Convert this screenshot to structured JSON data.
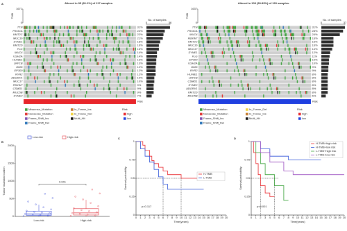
{
  "chart_data": [
    {
      "type": "oncoplot",
      "panel_label": "A",
      "title": "Altered in 95 (81.2%) of 117 samples.",
      "n_samples": 117,
      "tmb_label": "TMB",
      "tmb_lim": [
        0,
        1671
      ],
      "tmb_ticks": [
        1671,
        0
      ],
      "count_label": "No. of samples",
      "count_lim": [
        0,
        36
      ],
      "count_ticks": [
        0,
        36
      ],
      "genes": [
        "TTN",
        "PIK3CA",
        "KMT2C",
        "MUC16",
        "SYNE1",
        "KMT2D",
        "FLG",
        "MUC4",
        "USH2A",
        "HUWE1",
        "LRP1B",
        "DMD",
        "EP300",
        "RYR2",
        "ADGRV1",
        "MUC17",
        "FBXW7",
        "CSMD1",
        "MUC5B",
        "SYNE2"
      ],
      "percent_labels": [
        "31%",
        "24%",
        "22%",
        "21%",
        "18%",
        "16%",
        "16%",
        "14%",
        "14%",
        "13%",
        "13%",
        "12%",
        "12%",
        "12%",
        "10%",
        "10%",
        "9%",
        "9%",
        "9%",
        "7%"
      ],
      "sample_counts": [
        36,
        28,
        26,
        25,
        21,
        19,
        19,
        16,
        16,
        15,
        15,
        14,
        14,
        14,
        12,
        12,
        11,
        11,
        11,
        8
      ],
      "risk_label": "Risk",
      "risk_color": "#e8262b",
      "legend": {
        "classes": [
          {
            "name": "Missense_Mutation",
            "color": "#3aa23a"
          },
          {
            "name": "Nonsense_Mutation",
            "color": "#e0312f"
          },
          {
            "name": "Frame_Shift_Ins",
            "color": "#7a4fb0"
          },
          {
            "name": "Frame_Shift_Del",
            "color": "#2a74b8"
          },
          {
            "name": "In_Frame_Ins",
            "color": "#c47a2c"
          },
          {
            "name": "In_Frame_Del",
            "color": "#f0d23c"
          },
          {
            "name": "Multi_Hit",
            "color": "#111111"
          }
        ],
        "risk_title": "Risk",
        "risk_levels": [
          {
            "name": "high",
            "color": "#e8262b"
          },
          {
            "name": "low",
            "color": "#1f3fe0"
          }
        ]
      }
    },
    {
      "type": "oncoplot",
      "title": "Altered in 109 (90.83%) of 120 samples.",
      "n_samples": 120,
      "tmb_label": "TMB",
      "tmb_lim": [
        0,
        1637
      ],
      "tmb_ticks": [
        1637,
        0
      ],
      "count_label": "No. of samples",
      "count_lim": [
        0,
        37
      ],
      "count_ticks": [
        0,
        37
      ],
      "genes": [
        "TTN",
        "PIK3CA",
        "MUC4",
        "FBXW7",
        "KMT2C",
        "MUC16",
        "MUC17",
        "SYNE1",
        "FLG",
        "EP300",
        "USH2A",
        "DMD",
        "RYR2",
        "HUWE1",
        "LRP1B",
        "CSMD1",
        "SYNE2",
        "ADGRV1",
        "KMT2D",
        "MUC5B"
      ],
      "percent_labels": [
        "31%",
        "28%",
        "24%",
        "16%",
        "16%",
        "16%",
        "14%",
        "12%",
        "11%",
        "10%",
        "10%",
        "9%",
        "9%",
        "8%",
        "8%",
        "8%",
        "8%",
        "8%",
        "8%",
        "6%"
      ],
      "sample_counts": [
        37,
        34,
        29,
        19,
        19,
        19,
        17,
        14,
        13,
        12,
        12,
        11,
        11,
        10,
        10,
        10,
        10,
        10,
        10,
        7
      ],
      "risk_label": "Risk",
      "risk_color": "#1f3fe0",
      "legend": {
        "classes": [
          {
            "name": "Missense_Mutation",
            "color": "#3aa23a"
          },
          {
            "name": "Nonsense_Mutation",
            "color": "#e0312f"
          },
          {
            "name": "Frame_Shift_Ins",
            "color": "#7a4fb0"
          },
          {
            "name": "Frame_Shift_Del",
            "color": "#2a74b8"
          },
          {
            "name": "In_Frame_Del",
            "color": "#f0d23c"
          },
          {
            "name": "In_Frame_Ins",
            "color": "#c47a2c"
          },
          {
            "name": "Multi_Hit",
            "color": "#111111"
          }
        ],
        "risk_title": "Risk",
        "risk_levels": [
          {
            "name": "high",
            "color": "#e8262b"
          },
          {
            "name": "low",
            "color": "#1f3fe0"
          }
        ]
      }
    },
    {
      "type": "box",
      "panel_label": "B",
      "ylabel": "Tumor mutation burden",
      "categories": [
        "Low-risk",
        "High-risk"
      ],
      "colors": [
        "#2a3fd6",
        "#e0323c"
      ],
      "ylim": [
        0,
        2000
      ],
      "yticks": [
        0,
        500,
        1000,
        1500,
        2000
      ],
      "boxes": [
        {
          "min": 0,
          "q1": 30,
          "median": 70,
          "q3": 150,
          "max": 330
        },
        {
          "min": 0,
          "q1": 40,
          "median": 100,
          "q3": 220,
          "max": 470
        }
      ],
      "points": [
        [
          10,
          25,
          40,
          55,
          70,
          90,
          110,
          130,
          160,
          200,
          260,
          340,
          420,
          520,
          640
        ],
        [
          15,
          30,
          50,
          75,
          95,
          120,
          150,
          180,
          230,
          290,
          380,
          480,
          560,
          650,
          760
        ]
      ],
      "p_value": 0.041
    },
    {
      "type": "km",
      "panel_label": "C",
      "xlabel": "Time(years)",
      "ylabel": "Survival probability",
      "xlim": [
        0,
        20
      ],
      "xticks": [
        0,
        1,
        2,
        3,
        4,
        5,
        6,
        7,
        8,
        9,
        10,
        11,
        12,
        13,
        14,
        15,
        16,
        17,
        18,
        19,
        20
      ],
      "ylim": [
        0,
        1
      ],
      "yticks": [
        0,
        0.25,
        0.5,
        0.75,
        1
      ],
      "median_line": 0.5,
      "p_text": "p=0.117",
      "legend_corner": "right",
      "series": [
        {
          "name": "H-TMB",
          "color": "#e8262b",
          "x": [
            0,
            1.5,
            1.5,
            2,
            2,
            3,
            3,
            3.5,
            3.5,
            4,
            4,
            5,
            5,
            6,
            6,
            7,
            7,
            10,
            10,
            17
          ],
          "y": [
            1,
            1,
            0.95,
            0.95,
            0.88,
            0.88,
            0.8,
            0.8,
            0.74,
            0.74,
            0.7,
            0.7,
            0.65,
            0.65,
            0.6,
            0.6,
            0.55,
            0.55,
            0.5,
            0.5
          ]
        },
        {
          "name": "L-TMB",
          "color": "#2a4fd6",
          "x": [
            0,
            1,
            1,
            2,
            2,
            3,
            3,
            4,
            4,
            5,
            5,
            6,
            6,
            7,
            7,
            15
          ],
          "y": [
            1,
            1,
            0.9,
            0.9,
            0.8,
            0.8,
            0.72,
            0.72,
            0.62,
            0.62,
            0.52,
            0.52,
            0.42,
            0.42,
            0.35,
            0.35
          ]
        }
      ]
    },
    {
      "type": "km",
      "panel_label": "D",
      "xlabel": "Time(years)",
      "ylabel": "Survival probability",
      "xlim": [
        0,
        20
      ],
      "xticks": [
        0,
        1,
        2,
        3,
        4,
        5,
        6,
        7,
        8,
        9,
        10,
        11,
        12,
        13,
        14,
        15,
        16,
        17,
        18,
        19,
        20
      ],
      "ylim": [
        0,
        1
      ],
      "yticks": [
        0,
        0.25,
        0.5,
        0.75,
        1
      ],
      "median_line": 0.5,
      "p_text": "p<0.001",
      "legend_corner": "top-right",
      "series": [
        {
          "name": "H-TMB+high risk",
          "color": "#e8262b",
          "x": [
            0,
            0.5,
            0.5,
            1,
            1,
            1.5,
            1.5,
            2,
            2,
            3,
            3,
            4,
            4,
            5
          ],
          "y": [
            1,
            1,
            0.85,
            0.85,
            0.7,
            0.7,
            0.55,
            0.55,
            0.4,
            0.4,
            0.3,
            0.3,
            0.25,
            0.25
          ]
        },
        {
          "name": "H-TMB+low risk",
          "color": "#2a4fd6",
          "x": [
            0,
            2,
            2,
            4,
            4,
            8,
            8,
            15
          ],
          "y": [
            1,
            1,
            0.9,
            0.9,
            0.8,
            0.8,
            0.75,
            0.75
          ]
        },
        {
          "name": "L-TMB+high risk",
          "color": "#3aa23a",
          "x": [
            0,
            1,
            1,
            2,
            2,
            3,
            3,
            5,
            5,
            7,
            7,
            8
          ],
          "y": [
            1,
            1,
            0.85,
            0.85,
            0.7,
            0.7,
            0.55,
            0.55,
            0.4,
            0.4,
            0.2,
            0.2
          ]
        },
        {
          "name": "L-TMB+low risk",
          "color": "#9b4fc0",
          "x": [
            0,
            2,
            2,
            4,
            4,
            7,
            7,
            9,
            9,
            20
          ],
          "y": [
            1,
            1,
            0.85,
            0.85,
            0.72,
            0.72,
            0.6,
            0.6,
            0.55,
            0.55
          ]
        }
      ]
    }
  ]
}
